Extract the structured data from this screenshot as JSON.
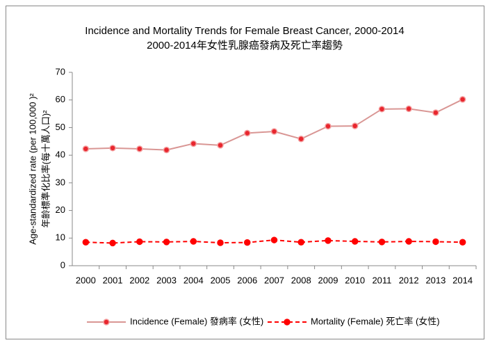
{
  "chart_data": {
    "type": "line",
    "title": "Incidence and Mortality Trends for Female Breast Cancer, 2000-2014",
    "subtitle": "2000-2014年女性乳腺癌發病及死亡率趨勢",
    "y_label": "Age-standardized rate (per 100,000 )²",
    "y_label_2": "年齡標準化比率(每十萬人口)²",
    "categories": [
      "2000",
      "2001",
      "2002",
      "2003",
      "2004",
      "2005",
      "2006",
      "2007",
      "2008",
      "2009",
      "2010",
      "2011",
      "2012",
      "2013",
      "2014"
    ],
    "series": [
      {
        "name": "Incidence (Female) 發病率 (女性)",
        "color": "#d99694",
        "marker_color": "#e8262e",
        "dash": false,
        "values": [
          42.3,
          42.6,
          42.3,
          41.9,
          44.2,
          43.6,
          48.0,
          48.6,
          45.9,
          50.5,
          50.6,
          56.7,
          56.8,
          55.4,
          60.2
        ]
      },
      {
        "name": "Mortality (Female) 死亡率 (女性)",
        "color": "#ff0000",
        "marker_color": "#ff0000",
        "dash": true,
        "values": [
          8.5,
          8.2,
          8.7,
          8.6,
          8.8,
          8.3,
          8.4,
          9.3,
          8.5,
          9.1,
          8.8,
          8.6,
          8.8,
          8.7,
          8.5
        ]
      }
    ],
    "ylim": [
      0,
      70
    ],
    "yticks": [
      0,
      10,
      20,
      30,
      40,
      50,
      60,
      70
    ],
    "grid": false,
    "legend": "bottom"
  }
}
